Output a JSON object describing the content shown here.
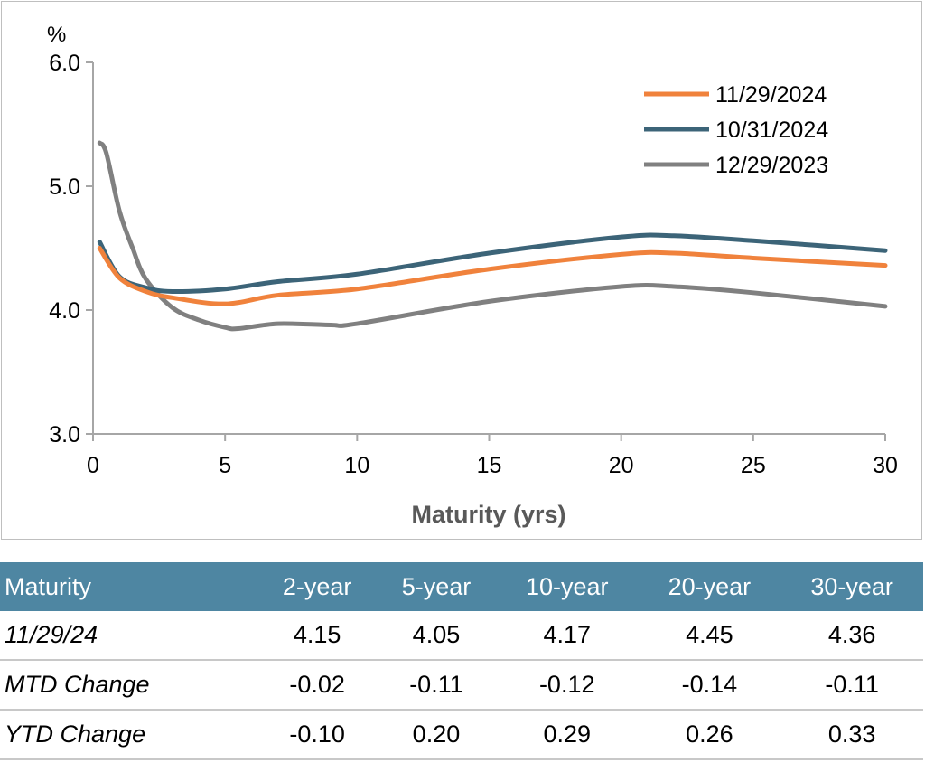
{
  "chart_data": {
    "type": "line",
    "ylabel": "%",
    "xlabel": "Maturity (yrs)",
    "xlim": [
      0,
      30
    ],
    "ylim": [
      3.0,
      6.0
    ],
    "xticks": [
      "0",
      "5",
      "10",
      "15",
      "20",
      "25",
      "30"
    ],
    "yticks": [
      "3.0",
      "4.0",
      "5.0",
      "6.0"
    ],
    "grid": false,
    "legend_position": "top-right",
    "series": [
      {
        "name": "11/29/2024",
        "color": "#f0823c",
        "x": [
          0.25,
          1,
          2,
          3,
          5,
          7,
          10,
          15,
          20,
          22,
          25,
          30
        ],
        "y": [
          4.5,
          4.26,
          4.15,
          4.1,
          4.05,
          4.12,
          4.17,
          4.33,
          4.45,
          4.46,
          4.42,
          4.36
        ]
      },
      {
        "name": "10/31/2024",
        "color": "#3c6478",
        "x": [
          0.25,
          1,
          2,
          3,
          5,
          7,
          10,
          15,
          20,
          22,
          25,
          30
        ],
        "y": [
          4.55,
          4.27,
          4.18,
          4.15,
          4.17,
          4.23,
          4.29,
          4.46,
          4.59,
          4.6,
          4.56,
          4.48
        ]
      },
      {
        "name": "12/29/2023",
        "color": "#808080",
        "x": [
          0.25,
          0.5,
          1,
          1.5,
          2,
          3,
          4,
          5,
          5.5,
          7,
          9,
          10,
          15,
          20,
          22,
          25,
          30
        ],
        "y": [
          5.35,
          5.27,
          4.8,
          4.5,
          4.25,
          4.02,
          3.92,
          3.86,
          3.85,
          3.89,
          3.88,
          3.89,
          4.07,
          4.19,
          4.19,
          4.14,
          4.03
        ]
      }
    ]
  },
  "table": {
    "header": [
      "Maturity",
      "2-year",
      "5-year",
      "10-year",
      "20-year",
      "30-year"
    ],
    "rows": [
      [
        "11/29/24",
        "4.15",
        "4.05",
        "4.17",
        "4.45",
        "4.36"
      ],
      [
        "MTD Change",
        "-0.02",
        "-0.11",
        "-0.12",
        "-0.14",
        "-0.11"
      ],
      [
        "YTD Change",
        "-0.10",
        "0.20",
        "0.29",
        "0.26",
        "0.33"
      ]
    ],
    "header_color": "#4e86a2"
  }
}
